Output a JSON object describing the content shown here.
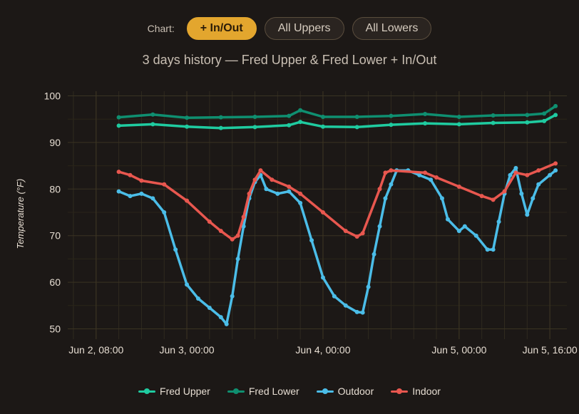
{
  "controls": {
    "label": "Chart:",
    "buttons": [
      {
        "label": "+ In/Out",
        "active": true
      },
      {
        "label": "All Uppers",
        "active": false
      },
      {
        "label": "All Lowers",
        "active": false
      }
    ]
  },
  "chart_data": {
    "type": "line",
    "subtitle": "3 days history — Fred Upper & Fred Lower + In/Out",
    "ylabel": "Temperature (°F)",
    "xlabel": "",
    "ylim": [
      49,
      101
    ],
    "yticks": [
      50,
      60,
      70,
      80,
      90,
      100
    ],
    "xlim": [
      "2024-06-02T03:00",
      "2024-06-05T19:00"
    ],
    "xticks": [
      {
        "t": "2024-06-02T08:00",
        "label": "Jun 2, 08:00"
      },
      {
        "t": "2024-06-03T00:00",
        "label": "Jun 3, 00:00"
      },
      {
        "t": "2024-06-04T00:00",
        "label": "Jun 4, 00:00"
      },
      {
        "t": "2024-06-05T00:00",
        "label": "Jun 5, 00:00"
      },
      {
        "t": "2024-06-05T16:00",
        "label": "Jun 5, 16:00"
      }
    ],
    "grid": true,
    "legend_position": "bottom",
    "series": [
      {
        "name": "Fred Upper",
        "color": "#1fcba0",
        "points": [
          [
            "2024-06-02T12:00",
            93.6
          ],
          [
            "2024-06-02T18:00",
            93.9
          ],
          [
            "2024-06-03T00:00",
            93.4
          ],
          [
            "2024-06-03T06:00",
            93.1
          ],
          [
            "2024-06-03T12:00",
            93.3
          ],
          [
            "2024-06-03T18:00",
            93.7
          ],
          [
            "2024-06-03T20:00",
            94.4
          ],
          [
            "2024-06-04T00:00",
            93.4
          ],
          [
            "2024-06-04T06:00",
            93.3
          ],
          [
            "2024-06-04T12:00",
            93.8
          ],
          [
            "2024-06-04T18:00",
            94.1
          ],
          [
            "2024-06-05T00:00",
            93.9
          ],
          [
            "2024-06-05T06:00",
            94.2
          ],
          [
            "2024-06-05T12:00",
            94.3
          ],
          [
            "2024-06-05T15:00",
            94.6
          ],
          [
            "2024-06-05T17:00",
            95.9
          ]
        ]
      },
      {
        "name": "Fred Lower",
        "color": "#0f8f70",
        "points": [
          [
            "2024-06-02T12:00",
            95.4
          ],
          [
            "2024-06-02T18:00",
            96.0
          ],
          [
            "2024-06-03T00:00",
            95.3
          ],
          [
            "2024-06-03T06:00",
            95.4
          ],
          [
            "2024-06-03T12:00",
            95.5
          ],
          [
            "2024-06-03T18:00",
            95.7
          ],
          [
            "2024-06-03T20:00",
            96.9
          ],
          [
            "2024-06-04T00:00",
            95.5
          ],
          [
            "2024-06-04T06:00",
            95.5
          ],
          [
            "2024-06-04T12:00",
            95.7
          ],
          [
            "2024-06-04T18:00",
            96.1
          ],
          [
            "2024-06-05T00:00",
            95.5
          ],
          [
            "2024-06-05T06:00",
            95.8
          ],
          [
            "2024-06-05T12:00",
            95.9
          ],
          [
            "2024-06-05T15:00",
            96.2
          ],
          [
            "2024-06-05T17:00",
            97.8
          ]
        ]
      },
      {
        "name": "Outdoor",
        "color": "#4bbde8",
        "points": [
          [
            "2024-06-02T12:00",
            79.5
          ],
          [
            "2024-06-02T14:00",
            78.5
          ],
          [
            "2024-06-02T16:00",
            79.0
          ],
          [
            "2024-06-02T18:00",
            78.0
          ],
          [
            "2024-06-02T20:00",
            75.0
          ],
          [
            "2024-06-02T22:00",
            67.0
          ],
          [
            "2024-06-03T00:00",
            59.5
          ],
          [
            "2024-06-03T02:00",
            56.5
          ],
          [
            "2024-06-03T04:00",
            54.5
          ],
          [
            "2024-06-03T06:00",
            52.5
          ],
          [
            "2024-06-03T07:00",
            51.0
          ],
          [
            "2024-06-03T08:00",
            57.0
          ],
          [
            "2024-06-03T09:00",
            65.0
          ],
          [
            "2024-06-03T10:00",
            72.0
          ],
          [
            "2024-06-03T11:00",
            78.0
          ],
          [
            "2024-06-03T12:00",
            81.5
          ],
          [
            "2024-06-03T13:00",
            83.0
          ],
          [
            "2024-06-03T14:00",
            80.0
          ],
          [
            "2024-06-03T16:00",
            79.0
          ],
          [
            "2024-06-03T18:00",
            79.5
          ],
          [
            "2024-06-03T20:00",
            77.0
          ],
          [
            "2024-06-03T22:00",
            69.0
          ],
          [
            "2024-06-04T00:00",
            61.0
          ],
          [
            "2024-06-04T02:00",
            57.0
          ],
          [
            "2024-06-04T04:00",
            55.0
          ],
          [
            "2024-06-04T06:00",
            53.6
          ],
          [
            "2024-06-04T07:00",
            53.5
          ],
          [
            "2024-06-04T08:00",
            59.0
          ],
          [
            "2024-06-04T09:00",
            66.0
          ],
          [
            "2024-06-04T10:00",
            72.0
          ],
          [
            "2024-06-04T11:00",
            78.0
          ],
          [
            "2024-06-04T12:00",
            81.0
          ],
          [
            "2024-06-04T13:00",
            84.0
          ],
          [
            "2024-06-04T15:00",
            84.0
          ],
          [
            "2024-06-04T17:00",
            83.0
          ],
          [
            "2024-06-04T19:00",
            82.0
          ],
          [
            "2024-06-04T21:00",
            78.0
          ],
          [
            "2024-06-04T22:00",
            73.5
          ],
          [
            "2024-06-05T00:00",
            71.0
          ],
          [
            "2024-06-05T01:00",
            72.0
          ],
          [
            "2024-06-05T03:00",
            70.0
          ],
          [
            "2024-06-05T05:00",
            67.0
          ],
          [
            "2024-06-05T06:00",
            67.0
          ],
          [
            "2024-06-05T07:00",
            73.0
          ],
          [
            "2024-06-05T08:00",
            79.0
          ],
          [
            "2024-06-05T09:00",
            83.0
          ],
          [
            "2024-06-05T10:00",
            84.5
          ],
          [
            "2024-06-05T11:00",
            79.0
          ],
          [
            "2024-06-05T12:00",
            74.5
          ],
          [
            "2024-06-05T13:00",
            78.0
          ],
          [
            "2024-06-05T14:00",
            81.0
          ],
          [
            "2024-06-05T16:00",
            83.0
          ],
          [
            "2024-06-05T17:00",
            84.0
          ]
        ]
      },
      {
        "name": "Indoor",
        "color": "#e8574f",
        "points": [
          [
            "2024-06-02T12:00",
            83.7
          ],
          [
            "2024-06-02T14:00",
            83.0
          ],
          [
            "2024-06-02T16:00",
            81.8
          ],
          [
            "2024-06-02T20:00",
            81.0
          ],
          [
            "2024-06-03T00:00",
            77.5
          ],
          [
            "2024-06-03T04:00",
            73.0
          ],
          [
            "2024-06-03T06:00",
            71.0
          ],
          [
            "2024-06-03T08:00",
            69.2
          ],
          [
            "2024-06-03T09:00",
            70.0
          ],
          [
            "2024-06-03T10:00",
            74.0
          ],
          [
            "2024-06-03T11:00",
            79.0
          ],
          [
            "2024-06-03T12:00",
            82.0
          ],
          [
            "2024-06-03T13:00",
            84.0
          ],
          [
            "2024-06-03T15:00",
            82.0
          ],
          [
            "2024-06-03T18:00",
            80.5
          ],
          [
            "2024-06-03T20:00",
            79.0
          ],
          [
            "2024-06-04T00:00",
            75.0
          ],
          [
            "2024-06-04T04:00",
            71.0
          ],
          [
            "2024-06-04T06:00",
            69.8
          ],
          [
            "2024-06-04T07:00",
            70.5
          ],
          [
            "2024-06-04T10:00",
            80.0
          ],
          [
            "2024-06-04T11:00",
            83.5
          ],
          [
            "2024-06-04T12:00",
            84.0
          ],
          [
            "2024-06-04T18:00",
            83.5
          ],
          [
            "2024-06-04T20:00",
            82.5
          ],
          [
            "2024-06-05T00:00",
            80.5
          ],
          [
            "2024-06-05T04:00",
            78.5
          ],
          [
            "2024-06-05T06:00",
            77.7
          ],
          [
            "2024-06-05T08:00",
            79.5
          ],
          [
            "2024-06-05T10:00",
            83.5
          ],
          [
            "2024-06-05T12:00",
            83.0
          ],
          [
            "2024-06-05T14:00",
            84.0
          ],
          [
            "2024-06-05T17:00",
            85.5
          ]
        ]
      }
    ]
  }
}
